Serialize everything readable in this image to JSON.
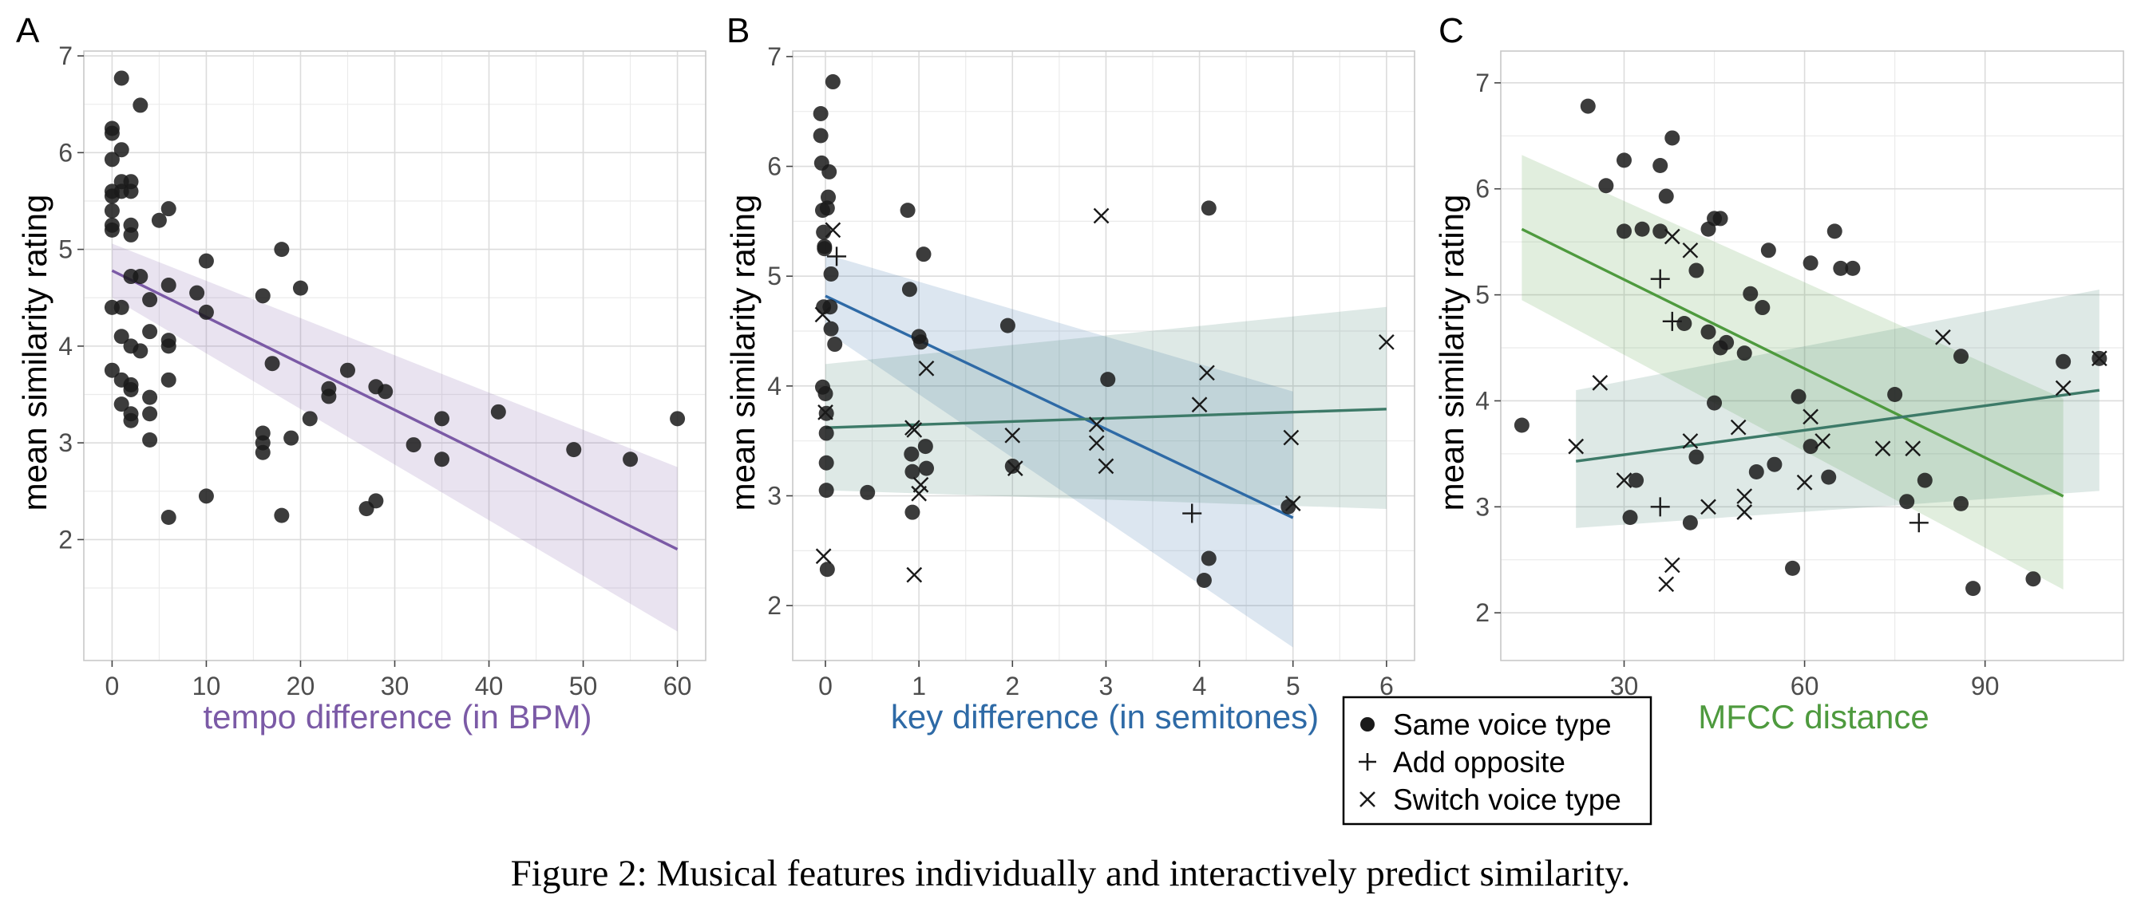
{
  "caption": "Figure 2: Musical features individually and interactively predict similarity.",
  "colors": {
    "tempo": "#7b5aa6",
    "key_same": "#2e6aa6",
    "key_switch": "#3d7a68",
    "mfcc_same": "#4e9a3e",
    "mfcc_switch": "#3d7a68",
    "point": "#1a1a1a"
  },
  "chart_data": [
    {
      "panel": "A",
      "type": "scatter",
      "xlabel": "tempo difference (in BPM)",
      "ylabel": "mean similarity rating",
      "xlim": [
        -3,
        63
      ],
      "ylim": [
        0.75,
        7.05
      ],
      "xticks": [
        0,
        10,
        20,
        30,
        40,
        50,
        60
      ],
      "yticks": [
        2,
        3,
        4,
        5,
        6,
        7
      ],
      "grid": true,
      "series": [
        {
          "marker": "circle",
          "points": [
            [
              0,
              6.25
            ],
            [
              0,
              6.2
            ],
            [
              0,
              5.93
            ],
            [
              0,
              5.6
            ],
            [
              0,
              5.55
            ],
            [
              0,
              5.4
            ],
            [
              0,
              5.25
            ],
            [
              0,
              5.2
            ],
            [
              0,
              4.4
            ],
            [
              0,
              3.75
            ],
            [
              1,
              6.77
            ],
            [
              1,
              6.03
            ],
            [
              1,
              5.7
            ],
            [
              1,
              5.6
            ],
            [
              1,
              4.4
            ],
            [
              1,
              4.1
            ],
            [
              1,
              3.65
            ],
            [
              1,
              3.4
            ],
            [
              2,
              5.7
            ],
            [
              2,
              5.6
            ],
            [
              2,
              5.25
            ],
            [
              2,
              5.15
            ],
            [
              2,
              4.72
            ],
            [
              2,
              4.0
            ],
            [
              2,
              3.6
            ],
            [
              2,
              3.55
            ],
            [
              2,
              3.3
            ],
            [
              2,
              3.23
            ],
            [
              3,
              6.49
            ],
            [
              3,
              4.72
            ],
            [
              3,
              3.95
            ],
            [
              4,
              4.48
            ],
            [
              4,
              4.15
            ],
            [
              4,
              3.47
            ],
            [
              4,
              3.3
            ],
            [
              4,
              3.03
            ],
            [
              5,
              5.3
            ],
            [
              6,
              5.42
            ],
            [
              6,
              4.63
            ],
            [
              6,
              4.06
            ],
            [
              6,
              4.0
            ],
            [
              6,
              3.65
            ],
            [
              6,
              2.23
            ],
            [
              9,
              4.55
            ],
            [
              10,
              4.88
            ],
            [
              10,
              4.35
            ],
            [
              10,
              2.45
            ],
            [
              16,
              4.52
            ],
            [
              16,
              3.1
            ],
            [
              16,
              3.0
            ],
            [
              16,
              2.9
            ],
            [
              17,
              3.82
            ],
            [
              18,
              5.0
            ],
            [
              18,
              2.25
            ],
            [
              19,
              3.05
            ],
            [
              20,
              4.6
            ],
            [
              21,
              3.25
            ],
            [
              23,
              3.56
            ],
            [
              23,
              3.48
            ],
            [
              25,
              3.75
            ],
            [
              27,
              2.32
            ],
            [
              28,
              3.58
            ],
            [
              28,
              2.4
            ],
            [
              29,
              3.53
            ],
            [
              32,
              2.98
            ],
            [
              35,
              3.25
            ],
            [
              35,
              2.83
            ],
            [
              41,
              3.32
            ],
            [
              49,
              2.93
            ],
            [
              55,
              2.83
            ],
            [
              60,
              3.25
            ]
          ]
        }
      ],
      "fits": [
        {
          "x": [
            0,
            60
          ],
          "y": [
            4.78,
            1.9
          ],
          "lo": [
            4.5,
            1.05
          ],
          "hi": [
            5.06,
            2.75
          ],
          "color": "#7b5aa6"
        }
      ]
    },
    {
      "panel": "B",
      "type": "scatter",
      "xlabel": "key difference (in semitones)",
      "ylabel": "mean similarity rating",
      "xlim": [
        -0.35,
        6.3
      ],
      "ylim": [
        1.5,
        7.05
      ],
      "xticks": [
        0,
        1,
        2,
        3,
        4,
        5,
        6
      ],
      "yticks": [
        2,
        3,
        4,
        5,
        6,
        7
      ],
      "grid": true,
      "series": [
        {
          "name": "Same voice type",
          "marker": "circle",
          "points": [
            [
              -0.05,
              6.48
            ],
            [
              -0.05,
              6.28
            ],
            [
              -0.04,
              6.03
            ],
            [
              -0.03,
              5.6
            ],
            [
              -0.02,
              5.4
            ],
            [
              -0.01,
              5.27
            ],
            [
              -0.01,
              5.25
            ],
            [
              -0.02,
              4.72
            ],
            [
              -0.03,
              3.99
            ],
            [
              0,
              3.93
            ],
            [
              0.01,
              3.75
            ],
            [
              0.01,
              3.57
            ],
            [
              0.01,
              3.3
            ],
            [
              0.01,
              3.05
            ],
            [
              0.02,
              2.33
            ],
            [
              0.02,
              5.62
            ],
            [
              0.03,
              5.72
            ],
            [
              0.04,
              5.95
            ],
            [
              0.05,
              4.72
            ],
            [
              0.06,
              4.52
            ],
            [
              0.08,
              6.77
            ],
            [
              0.1,
              4.38
            ],
            [
              0.06,
              5.02
            ],
            [
              0.45,
              3.03
            ],
            [
              0.88,
              5.6
            ],
            [
              0.9,
              4.88
            ],
            [
              0.92,
              3.38
            ],
            [
              0.93,
              3.22
            ],
            [
              0.93,
              2.85
            ],
            [
              1.0,
              4.45
            ],
            [
              1.02,
              4.4
            ],
            [
              1.05,
              5.2
            ],
            [
              1.07,
              3.45
            ],
            [
              1.08,
              3.25
            ],
            [
              1.95,
              4.55
            ],
            [
              2.0,
              3.27
            ],
            [
              3.02,
              4.06
            ],
            [
              4.05,
              2.23
            ],
            [
              4.1,
              2.43
            ],
            [
              4.1,
              5.62
            ],
            [
              4.95,
              2.9
            ]
          ]
        },
        {
          "name": "Add opposite",
          "marker": "plus",
          "points": [
            [
              0.12,
              5.18
            ],
            [
              3.92,
              2.84
            ]
          ]
        },
        {
          "name": "Switch voice type",
          "marker": "x",
          "points": [
            [
              0.08,
              5.42
            ],
            [
              -0.03,
              4.65
            ],
            [
              0,
              3.76
            ],
            [
              -0.02,
              2.45
            ],
            [
              0.93,
              3.62
            ],
            [
              0.95,
              3.6
            ],
            [
              0.95,
              2.28
            ],
            [
              1.0,
              3.02
            ],
            [
              1.02,
              3.1
            ],
            [
              1.08,
              4.16
            ],
            [
              2.0,
              3.55
            ],
            [
              2.03,
              3.25
            ],
            [
              2.95,
              5.55
            ],
            [
              2.9,
              3.65
            ],
            [
              2.9,
              3.48
            ],
            [
              3.0,
              3.27
            ],
            [
              4.0,
              3.83
            ],
            [
              4.08,
              4.12
            ],
            [
              4.98,
              3.53
            ],
            [
              5.0,
              2.93
            ],
            [
              6.0,
              4.4
            ]
          ]
        }
      ],
      "fits": [
        {
          "x": [
            0,
            5
          ],
          "y": [
            4.82,
            2.8
          ],
          "lo": [
            4.5,
            1.62
          ],
          "hi": [
            5.2,
            3.95
          ],
          "color": "#2e6aa6"
        },
        {
          "x": [
            0,
            6
          ],
          "y": [
            3.62,
            3.79
          ],
          "lo": [
            3.05,
            2.88
          ],
          "hi": [
            4.2,
            4.72
          ],
          "color": "#3d7a68"
        }
      ]
    },
    {
      "panel": "C",
      "type": "scatter",
      "xlabel": "MFCC distance",
      "ylabel": "mean similarity rating",
      "xlim": [
        9.5,
        113
      ],
      "ylim": [
        1.55,
        7.3
      ],
      "xticks": [
        30,
        60,
        90
      ],
      "yticks": [
        2,
        3,
        4,
        5,
        6,
        7
      ],
      "grid": true,
      "series": [
        {
          "name": "Same voice type",
          "marker": "circle",
          "points": [
            [
              13,
              3.77
            ],
            [
              24,
              6.78
            ],
            [
              27,
              6.03
            ],
            [
              30,
              6.27
            ],
            [
              30,
              5.6
            ],
            [
              31,
              2.9
            ],
            [
              32,
              3.25
            ],
            [
              33,
              5.62
            ],
            [
              36,
              6.22
            ],
            [
              36,
              5.6
            ],
            [
              37,
              5.93
            ],
            [
              38,
              6.48
            ],
            [
              40,
              4.73
            ],
            [
              41,
              2.85
            ],
            [
              42,
              5.23
            ],
            [
              42,
              3.47
            ],
            [
              44,
              5.62
            ],
            [
              44,
              4.65
            ],
            [
              45,
              5.72
            ],
            [
              45,
              3.98
            ],
            [
              46,
              5.72
            ],
            [
              46,
              4.5
            ],
            [
              47,
              4.55
            ],
            [
              50,
              4.45
            ],
            [
              51,
              5.01
            ],
            [
              52,
              3.33
            ],
            [
              53,
              4.88
            ],
            [
              54,
              5.42
            ],
            [
              55,
              3.4
            ],
            [
              58,
              2.42
            ],
            [
              59,
              4.04
            ],
            [
              61,
              3.57
            ],
            [
              61,
              5.3
            ],
            [
              64,
              3.28
            ],
            [
              65,
              5.6
            ],
            [
              66,
              5.25
            ],
            [
              68,
              5.25
            ],
            [
              75,
              4.06
            ],
            [
              77,
              3.05
            ],
            [
              80,
              3.25
            ],
            [
              86,
              4.42
            ],
            [
              86,
              3.03
            ],
            [
              88,
              2.23
            ],
            [
              98,
              2.32
            ],
            [
              103,
              4.37
            ],
            [
              109,
              4.4
            ]
          ]
        },
        {
          "name": "Add opposite",
          "marker": "plus",
          "points": [
            [
              36,
              5.15
            ],
            [
              38,
              4.75
            ],
            [
              36,
              3.0
            ],
            [
              79,
              2.85
            ]
          ]
        },
        {
          "name": "Switch voice type",
          "marker": "x",
          "points": [
            [
              22,
              3.57
            ],
            [
              26,
              4.17
            ],
            [
              30,
              3.25
            ],
            [
              37,
              2.27
            ],
            [
              38,
              5.55
            ],
            [
              38,
              2.45
            ],
            [
              41,
              5.42
            ],
            [
              41,
              3.62
            ],
            [
              44,
              3.0
            ],
            [
              49,
              3.75
            ],
            [
              50,
              3.1
            ],
            [
              50,
              2.95
            ],
            [
              60,
              3.23
            ],
            [
              61,
              3.85
            ],
            [
              63,
              3.62
            ],
            [
              73,
              3.55
            ],
            [
              78,
              3.55
            ],
            [
              83,
              4.6
            ],
            [
              103,
              4.12
            ],
            [
              109,
              4.4
            ]
          ]
        }
      ],
      "fits": [
        {
          "x": [
            13,
            103
          ],
          "y": [
            5.62,
            3.1
          ],
          "lo": [
            4.95,
            2.22
          ],
          "hi": [
            6.32,
            4.02
          ],
          "color": "#4e9a3e"
        },
        {
          "x": [
            22,
            109
          ],
          "y": [
            3.43,
            4.1
          ],
          "lo": [
            2.8,
            3.15
          ],
          "hi": [
            4.1,
            5.05
          ],
          "color": "#3d7a68"
        }
      ]
    }
  ],
  "legend": {
    "items": [
      {
        "label": "Same voice type",
        "marker": "circle"
      },
      {
        "label": "Add opposite",
        "marker": "plus"
      },
      {
        "label": "Switch voice type",
        "marker": "x"
      }
    ]
  }
}
